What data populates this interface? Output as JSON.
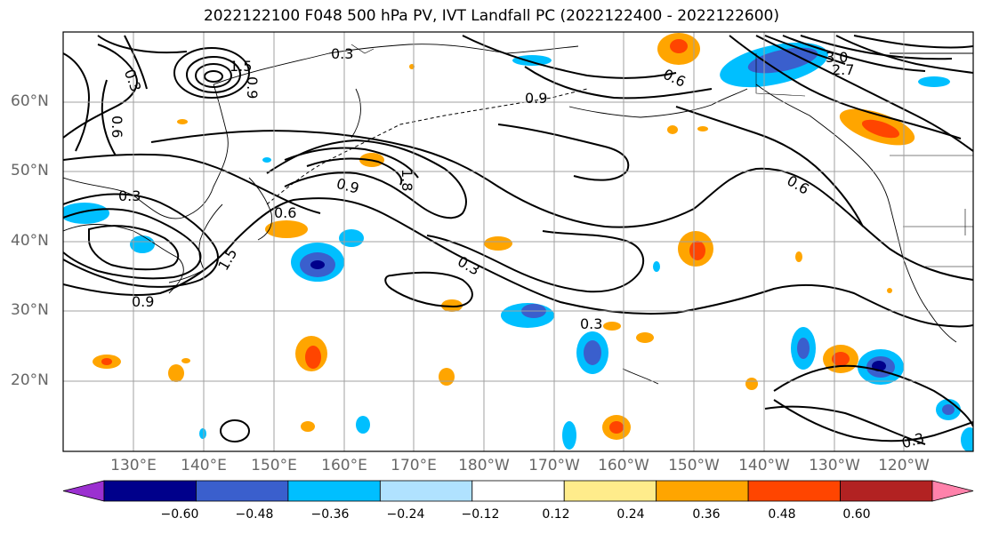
{
  "title": "2022122100 F048 500 hPa PV, IVT Landfall PC (2022122400 - 2022122600)",
  "lat_labels": [
    "60°N",
    "50°N",
    "40°N",
    "30°N",
    "20°N"
  ],
  "lon_labels": [
    "130°E",
    "140°E",
    "150°E",
    "160°E",
    "170°E",
    "180°W",
    "170°W",
    "160°W",
    "150°W",
    "140°W",
    "130°W",
    "120°W"
  ],
  "contour_labels": [
    "0.3",
    "0.6",
    "0.9",
    "1.5",
    "3.0",
    "2.7",
    "1.8",
    "0.3",
    "0.6",
    "0.9",
    "0.3",
    "0.3",
    "0.9",
    "0.6",
    "1.5",
    "0.6",
    "0.3",
    "0.9",
    "0.3"
  ],
  "colorbar": {
    "ticks": [
      "−0.60",
      "−0.48",
      "−0.36",
      "−0.24",
      "−0.12",
      "0.12",
      "0.24",
      "0.36",
      "0.48",
      "0.60"
    ],
    "colors": [
      "#9b30d0",
      "#00008b",
      "#3a5fcd",
      "#00bfff",
      "#b0e2ff",
      "#ffffff",
      "#ffec8b",
      "#ffa500",
      "#ff4500",
      "#b22222",
      "#ff82ab"
    ]
  }
}
